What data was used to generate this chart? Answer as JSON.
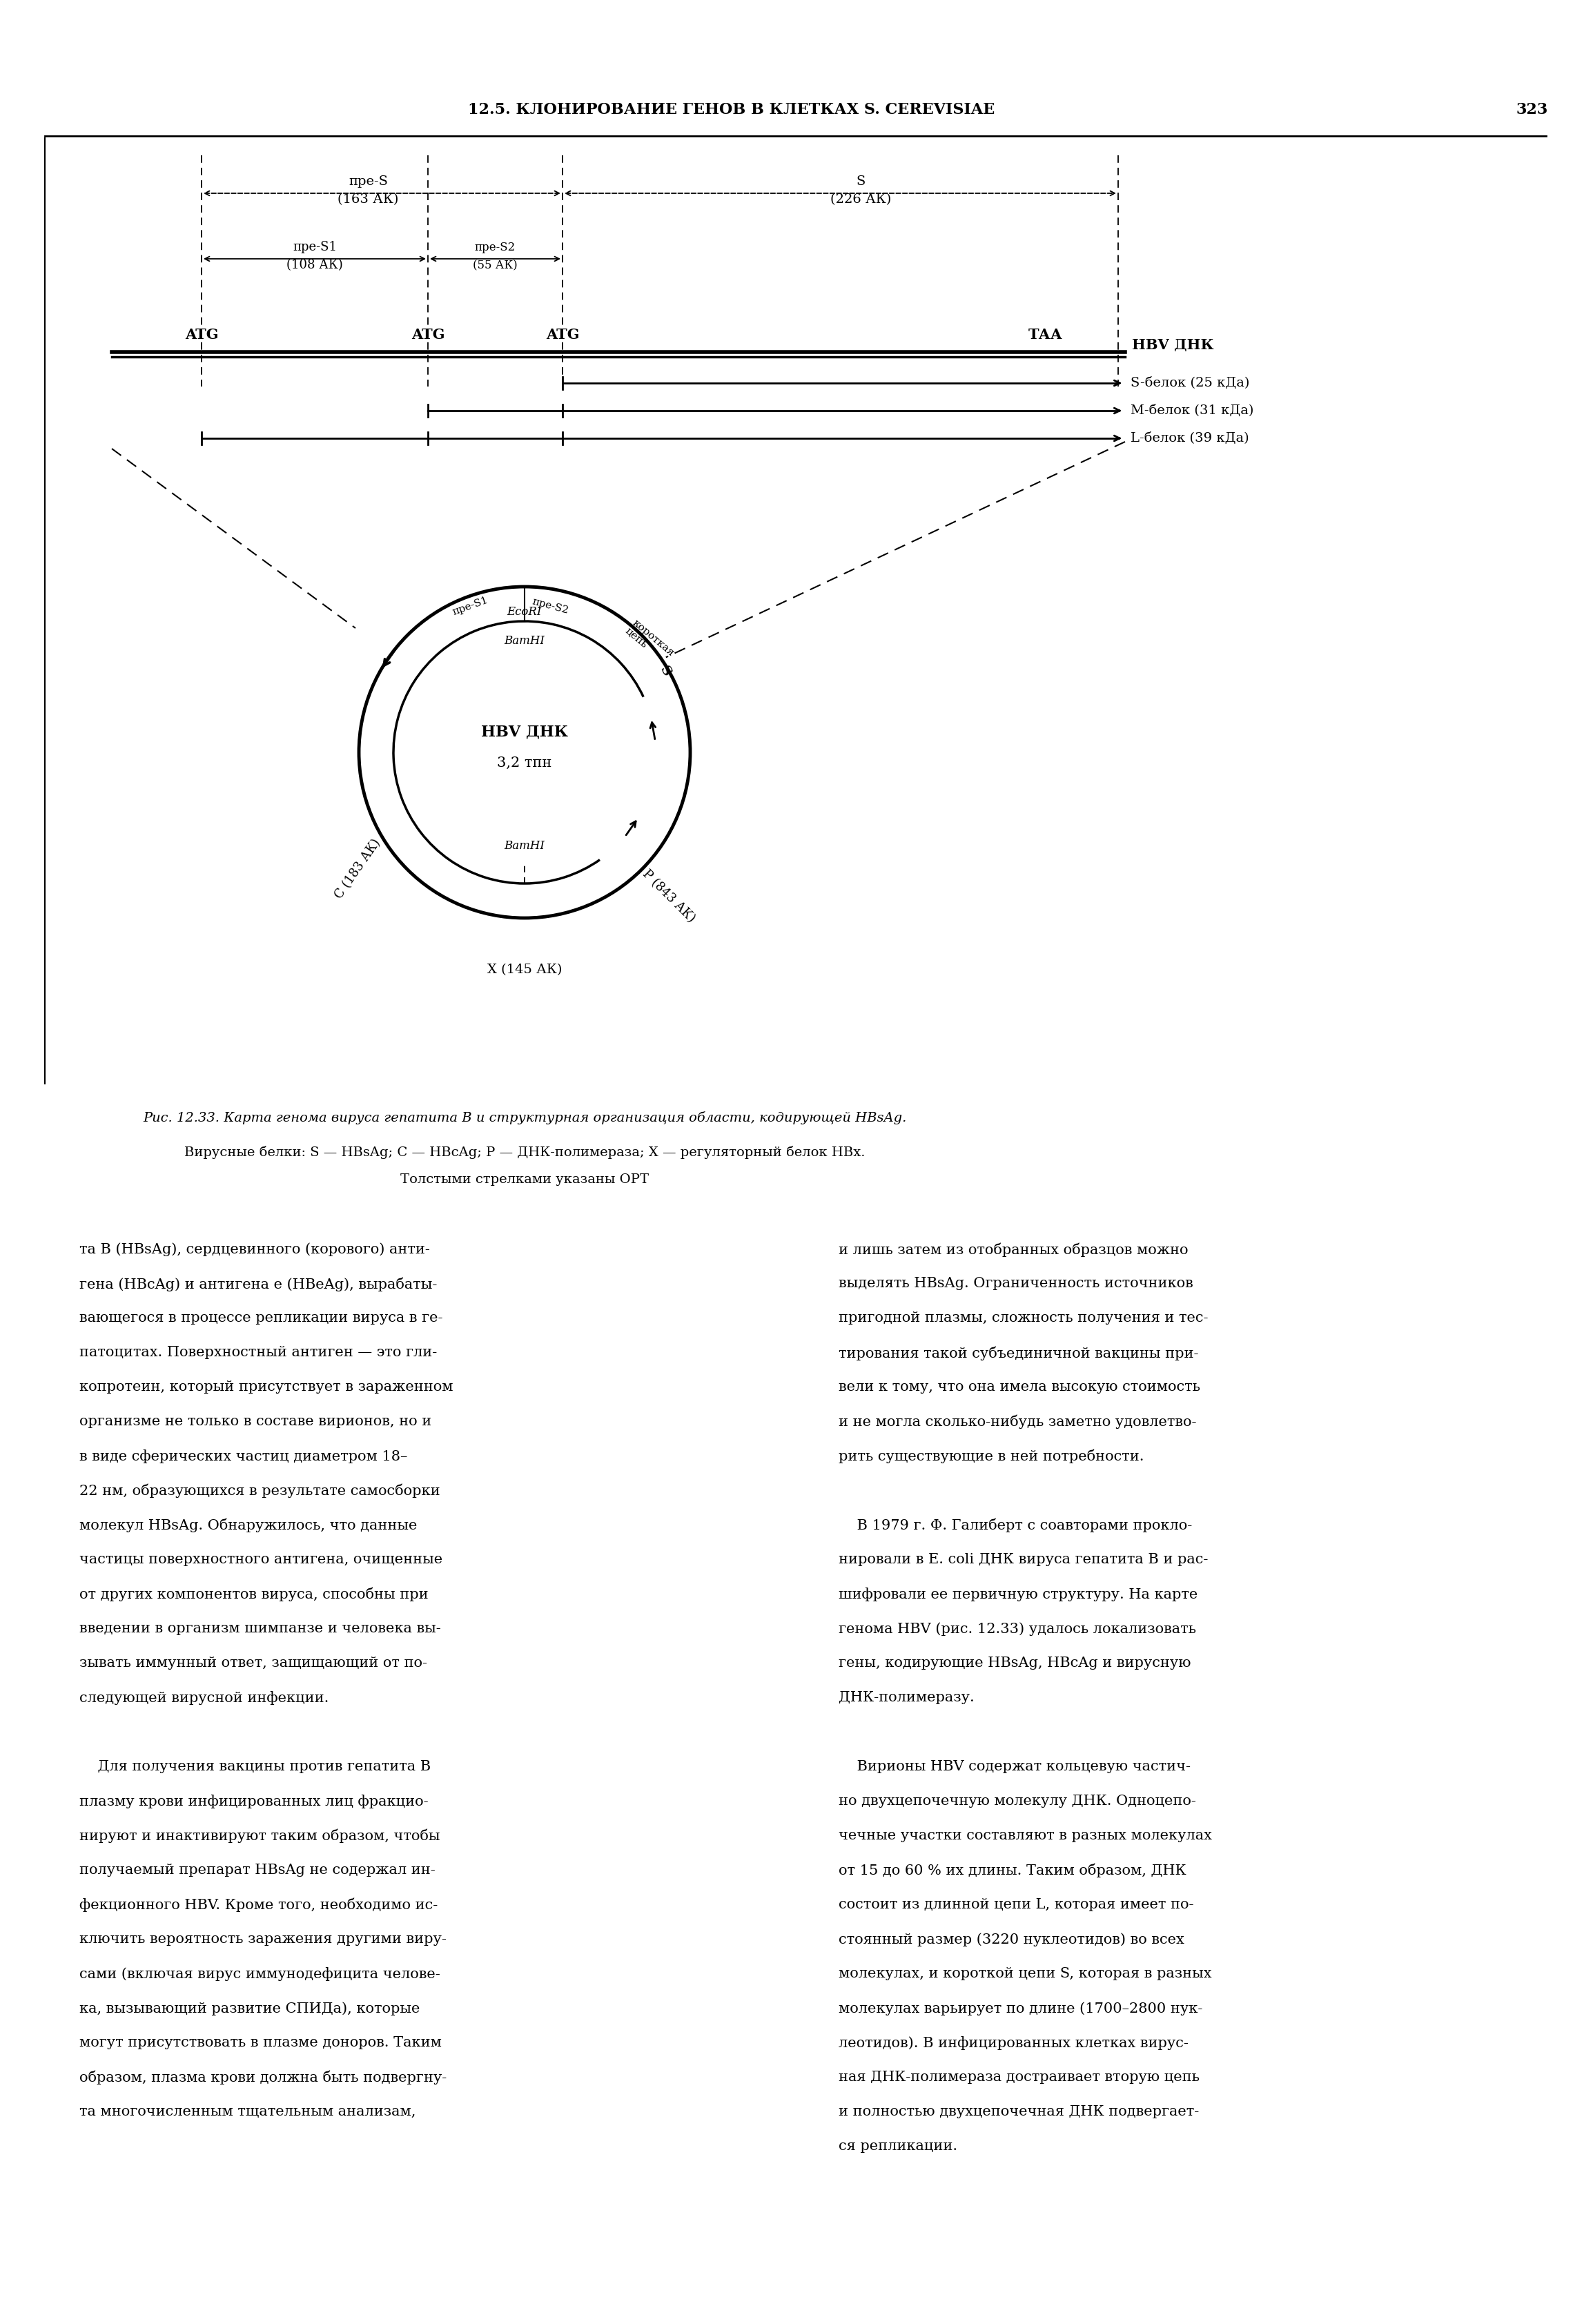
{
  "page_header": "12.5. КЛОНИРОВАНИЕ ГЕНОВ В КЛЕТКАХ S. CEREVISIAE",
  "page_number": "323",
  "fig_caption_line1": "Рис. 12.33. Карта генома вируса гепатита В и структурная организация области, кодирующей HBsAg.",
  "fig_caption_line2": "Вирусные белки: S — HBsAg; С — HBcAg; P — ДНК-полимераза; X — регуляторный белок НВх.",
  "fig_caption_line3": "Толстыми стрелками указаны ОРТ",
  "text_col1_lines": [
    "та В (HBsAg), сердцевинного (корового) анти-",
    "гена (HBcAg) и антигена е (HBeAg), вырабаты-",
    "вающегося в процессе репликации вируса в ге-",
    "патоцитах. Поверхностный антиген — это гли-",
    "копротеин, который присутствует в зараженном",
    "организме не только в составе вирионов, но и",
    "в виде сферических частиц диаметром 18–",
    "22 нм, образующихся в результате самосборки",
    "молекул HBsAg. Обнаружилось, что данные",
    "частицы поверхностного антигена, очищенные",
    "от других компонентов вируса, способны при",
    "введении в организм шимпанзе и человека вы-",
    "зывать иммунный ответ, защищающий от по-",
    "следующей вирусной инфекции.",
    "",
    "    Для получения вакцины против гепатита В",
    "плазму крови инфицированных лиц фракцио-",
    "нируют и инактивируют таким образом, чтобы",
    "получаемый препарат HBsAg не содержал ин-",
    "фекционного HBV. Кроме того, необходимо ис-",
    "ключить вероятность заражения другими виру-",
    "сами (включая вирус иммунодефицита челове-",
    "ка, вызывающий развитие СПИДа), которые",
    "могут присутствовать в плазме доноров. Таким",
    "образом, плазма крови должна быть подвергну-",
    "та многочисленным тщательным анализам,"
  ],
  "text_col2_lines": [
    "и лишь затем из отобранных образцов можно",
    "выделять HBsAg. Ограниченность источников",
    "пригодной плазмы, сложность получения и тес-",
    "тирования такой субъединичной вакцины при-",
    "вели к тому, что она имела высокую стоимость",
    "и не могла сколько-нибудь заметно удовлетво-",
    "рить существующие в ней потребности.",
    "",
    "    В 1979 г. Ф. Галиберт с соавторами прокло-",
    "нировали в E. coli ДНК вируса гепатита В и рас-",
    "шифровали ее первичную структуру. На карте",
    "генома HBV (рис. 12.33) удалось локализовать",
    "гены, кодирующие HBsAg, HBcAg и вирусную",
    "ДНК-полимеразу.",
    "",
    "    Вирионы HBV содержат кольцевую частич-",
    "но двухцепочечную молекулу ДНК. Одноцепо-",
    "чечные участки составляют в разных молекулах",
    "от 15 до 60 % их длины. Таким образом, ДНК",
    "состоит из длинной цепи L, которая имеет по-",
    "стоянный размер (3220 нуклеотидов) во всех",
    "молекулах, и короткой цепи S, которая в разных",
    "молекулах варьирует по длине (1700–2800 нук-",
    "леотидов). В инфицированных клетках вирус-",
    "ная ДНК-полимераза достраивает вторую цепь",
    "и полностью двухцепочечная ДНК подвергает-",
    "ся репликации."
  ]
}
